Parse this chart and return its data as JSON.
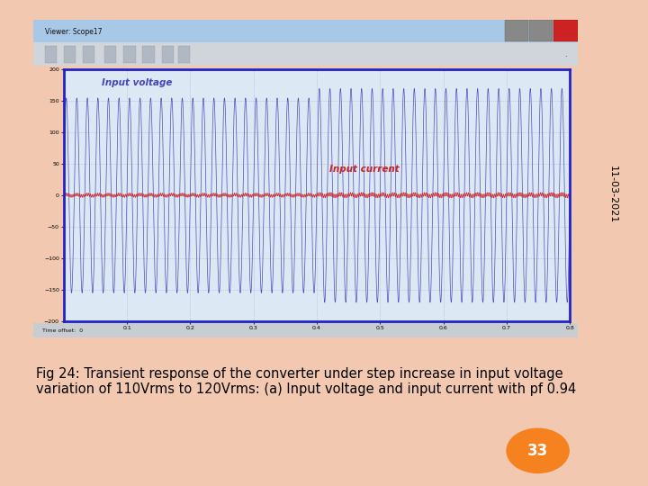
{
  "bg_color": "#f2c8b0",
  "white_area_color": "#ffffff",
  "date_text": "11-03-2021",
  "title_text": "Fig 24: Transient response of the converter under step increase in input voltage\nvariation of 110Vrms to 120Vrms: (a) Input voltage and input current with pf 0.94",
  "page_number": "33",
  "page_num_color": "#f5821f",
  "scope_title": "Viewer: Scope17",
  "scope_titlebar_color": "#a8c8e8",
  "scope_bg": "#c0c8d0",
  "scope_toolbar_color": "#c8cdd2",
  "plot_bg": "#dce8f4",
  "plot_border_color": "#2222cc",
  "input_voltage_label": "Input voltage",
  "input_voltage_color": "#4444bb",
  "input_current_label": "Input current",
  "input_current_color": "#cc2222",
  "y_range": [
    -200,
    200
  ],
  "x_range": [
    0,
    0.8
  ],
  "x_ticks": [
    0.1,
    0.2,
    0.3,
    0.4,
    0.5,
    0.6,
    0.7,
    0.8
  ],
  "y_ticks": [
    -200,
    -150,
    -100,
    -50,
    0,
    50,
    100,
    150,
    200
  ],
  "freq_hz": 60,
  "voltage_amp_before": 155,
  "voltage_amp_after": 170,
  "step_time": 0.4,
  "current_amp_before": 8,
  "current_amp_after": 10,
  "title_fontsize": 10.5,
  "date_fontsize": 8,
  "label_voltage_fontsize": 9,
  "label_current_fontsize": 9
}
